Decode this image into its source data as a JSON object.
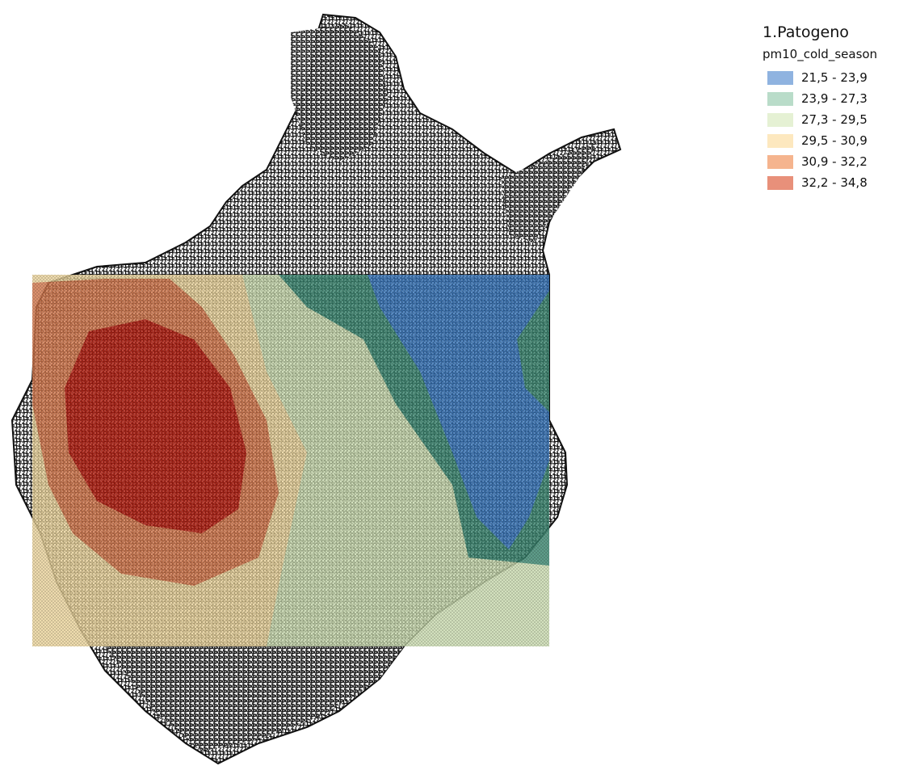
{
  "legend": {
    "title": "1.Patogeno",
    "field": "pm10_cold_season",
    "classes": [
      {
        "label": "21,5 - 23,9",
        "color": "#8fb3e0"
      },
      {
        "label": "23,9 - 27,3",
        "color": "#b9dcc9"
      },
      {
        "label": "27,3 - 29,5",
        "color": "#e5f1d4"
      },
      {
        "label": "29,5 - 30,9",
        "color": "#fde8bf"
      },
      {
        "label": "30,9 - 32,2",
        "color": "#f5b48e"
      },
      {
        "label": "32,2 - 34,8",
        "color": "#e8907a"
      }
    ]
  }
}
